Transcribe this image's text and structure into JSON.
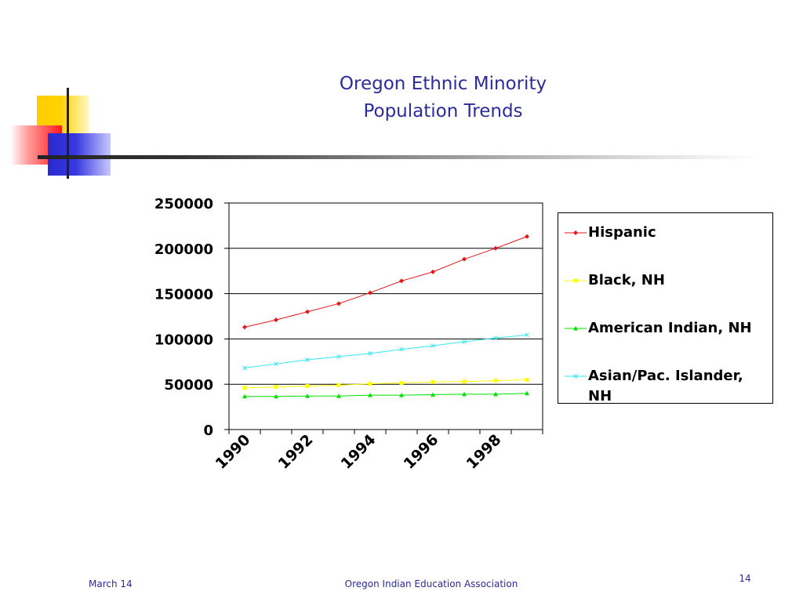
{
  "slide": {
    "title_line1": "Oregon Ethnic Minority",
    "title_line2": "Population Trends",
    "footer_date": "March 14",
    "footer_org": "Oregon Indian Education Association",
    "page_number": "14"
  },
  "colors": {
    "title": "#2b2b9a",
    "hispanic": "#e8161b",
    "black": "#ffff00",
    "american_indian": "#00e000",
    "asian": "#33e6ee"
  },
  "chart_data": {
    "type": "line",
    "x": [
      1990,
      1991,
      1992,
      1993,
      1994,
      1995,
      1996,
      1997,
      1998,
      1999
    ],
    "x_tick_labels": [
      "1990",
      "1992",
      "1994",
      "1996",
      "1998"
    ],
    "ylim": [
      0,
      250000
    ],
    "y_ticks": [
      0,
      50000,
      100000,
      150000,
      200000,
      250000
    ],
    "grid": true,
    "legend_position": "right",
    "series": [
      {
        "name": "Hispanic",
        "marker": "diamond",
        "color": "#e8161b",
        "values": [
          113000,
          121000,
          130000,
          139000,
          151000,
          164000,
          174000,
          188000,
          200000,
          213000
        ]
      },
      {
        "name": "Black, NH",
        "marker": "square",
        "color": "#ffff00",
        "values": [
          46000,
          47000,
          48000,
          49000,
          50500,
          51500,
          52500,
          53000,
          54000,
          55000
        ]
      },
      {
        "name": "American Indian, NH",
        "marker": "triangle",
        "color": "#00e000",
        "values": [
          36500,
          36500,
          37000,
          37000,
          38000,
          38000,
          38500,
          39000,
          39000,
          40000
        ]
      },
      {
        "name": "Asian/Pac. Islander, NH",
        "marker": "x",
        "color": "#33e6ee",
        "values": [
          68000,
          72500,
          77000,
          80500,
          84000,
          88500,
          92500,
          97000,
          101000,
          104500
        ]
      }
    ]
  }
}
